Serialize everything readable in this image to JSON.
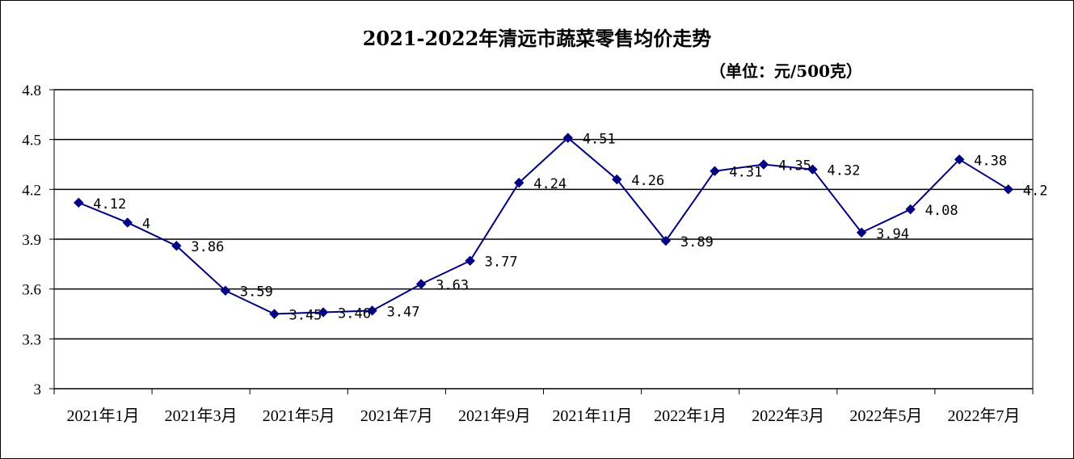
{
  "chart_data": {
    "type": "line",
    "title": "2021-2022年清远市蔬菜零售均价走势",
    "unit": "（单位：元/500克）",
    "xlabel": "",
    "ylabel": "",
    "ylim": [
      3,
      4.8
    ],
    "yticks": [
      "3",
      "3.3",
      "3.6",
      "3.9",
      "4.2",
      "4.5",
      "4.8"
    ],
    "grid": true,
    "legend": "none",
    "x_tick_labels": [
      "2021年1月",
      "2021年3月",
      "2021年5月",
      "2021年7月",
      "2021年9月",
      "2021年11月",
      "2022年1月",
      "2022年3月",
      "2022年5月",
      "2022年7月"
    ],
    "categories": [
      "2021-01",
      "2021-02",
      "2021-03",
      "2021-04",
      "2021-05",
      "2021-06",
      "2021-07",
      "2021-08",
      "2021-09",
      "2021-10",
      "2021-11",
      "2021-12",
      "2022-01",
      "2022-02",
      "2022-03",
      "2022-04",
      "2022-05",
      "2022-06",
      "2022-07",
      "2022-08"
    ],
    "series": [
      {
        "values": [
          4.12,
          4,
          3.86,
          3.59,
          3.45,
          3.46,
          3.47,
          3.63,
          3.77,
          4.24,
          4.51,
          4.26,
          3.89,
          4.31,
          4.35,
          4.32,
          3.94,
          4.08,
          4.38,
          4.2
        ],
        "labels": [
          "4.12",
          "4",
          "3.86",
          "3.59",
          "3.45",
          "3.46",
          "3.47",
          "3.63",
          "3.77",
          "4.24",
          "4.51",
          "4.26",
          "3.89",
          "4.31",
          "4.35",
          "4.32",
          "3.94",
          "4.08",
          "4.38",
          "4.2"
        ],
        "color": "#000080"
      }
    ]
  }
}
